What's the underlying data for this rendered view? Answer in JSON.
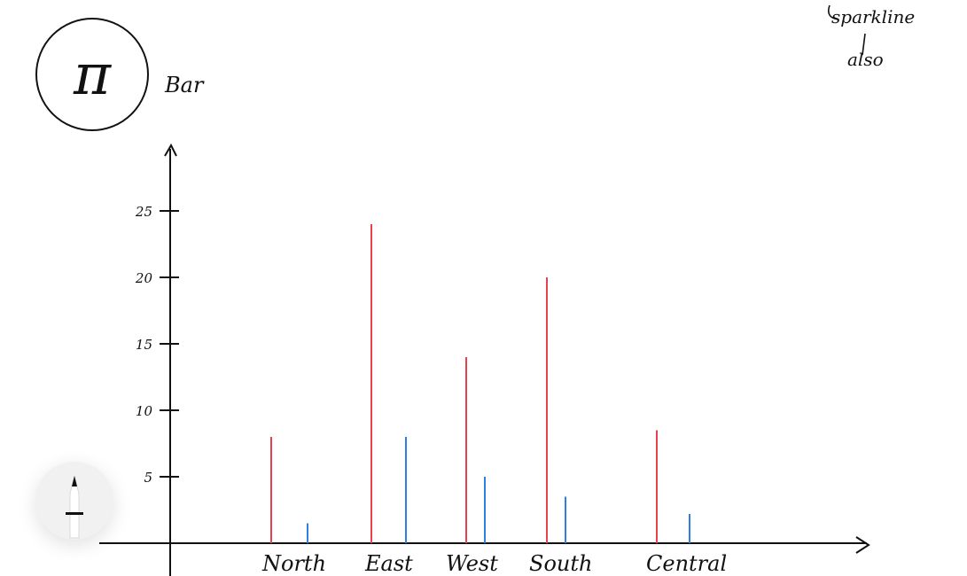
{
  "notes": {
    "pi_symbol": "π",
    "title_note": "Bar",
    "corner_note_line1": "sparkline",
    "corner_note_line2": "also"
  },
  "colors": {
    "series_a": "#e8424f",
    "series_b": "#2f7fe0",
    "ink": "#111111"
  },
  "icons": {
    "tool": "pencil-icon"
  },
  "chart_data": {
    "type": "bar",
    "categories": [
      "North",
      "East",
      "West",
      "South",
      "Central"
    ],
    "series": [
      {
        "values": [
          8,
          24,
          14,
          20,
          8.5
        ]
      },
      {
        "values": [
          1.5,
          8,
          5,
          3.5,
          2.2
        ]
      }
    ],
    "yticks": [
      "5",
      "10",
      "15",
      "20",
      "25"
    ],
    "ylim": [
      0,
      27
    ],
    "grid": false,
    "legend": "none"
  }
}
